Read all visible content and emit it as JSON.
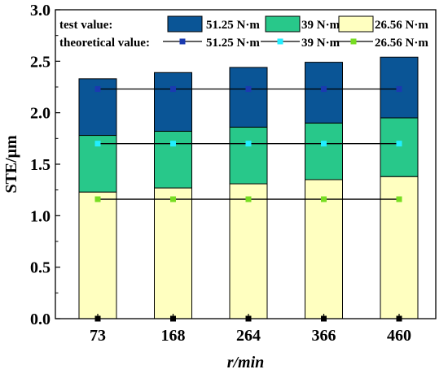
{
  "chart_data": {
    "type": "bar",
    "stacked": true,
    "categories": [
      "73",
      "168",
      "264",
      "366",
      "460"
    ],
    "xlabel": "r/min",
    "ylabel": "STE/μm",
    "ylim": [
      0,
      3.0
    ],
    "yticks": [
      "0.0",
      "0.5",
      "1.0",
      "1.5",
      "2.0",
      "2.5",
      "3.0"
    ],
    "grid": false,
    "legend_position": "top",
    "legend_rows": [
      {
        "label": "test value:",
        "kind": "bar"
      },
      {
        "label": "theoretical value:",
        "kind": "line"
      }
    ],
    "series": [
      {
        "name": "26.56 N·m",
        "stack_level": [
          1.23,
          1.27,
          1.31,
          1.35,
          1.38
        ],
        "color": "#ffffc0"
      },
      {
        "name": "39 N·m",
        "stack_level": [
          1.78,
          1.82,
          1.86,
          1.9,
          1.95
        ],
        "color": "#28c88a"
      },
      {
        "name": "51.25 N·m",
        "stack_level": [
          2.33,
          2.39,
          2.44,
          2.49,
          2.54
        ],
        "color": "#0a5596"
      }
    ],
    "theoretical_series": [
      {
        "name": "51.25 N·m",
        "values": [
          2.23,
          2.23,
          2.23,
          2.23,
          2.23
        ],
        "marker_color": "#1a3ab0"
      },
      {
        "name": "39 N·m",
        "values": [
          1.7,
          1.7,
          1.7,
          1.7,
          1.7
        ],
        "marker_color": "#22eeff"
      },
      {
        "name": "26.56 N·m",
        "values": [
          1.16,
          1.16,
          1.16,
          1.16,
          1.16
        ],
        "marker_color": "#77dd22"
      }
    ],
    "zero_marker_color": "#000000"
  }
}
